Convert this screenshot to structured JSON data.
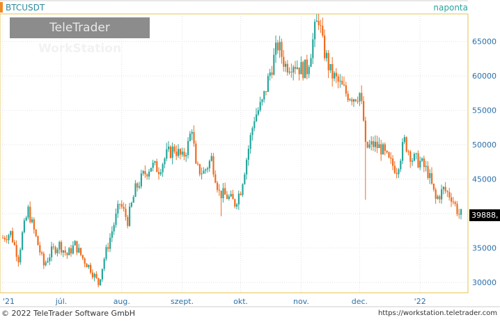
{
  "header": {
    "symbol": "BTCUSDT",
    "period": "naponta",
    "watermark_brand": "TeleTrader",
    "watermark_product": "WorkStation"
  },
  "footer": {
    "copyright": "© 2022  TeleTrader Software GmbH",
    "url": "https://workstation.teletrader.com"
  },
  "colors": {
    "up": "#26a69a",
    "down": "#f06c1e",
    "grid": "#e2e2e2",
    "axis": "#2a6fa8",
    "plot_border": "#e6c34a"
  },
  "chart_data": {
    "type": "candlestick",
    "last_value_label": "39888,",
    "ylim": [
      28500,
      69000
    ],
    "y_ticks": [
      30000,
      35000,
      40000,
      45000,
      50000,
      55000,
      60000,
      65000
    ],
    "y_tick_labels": [
      "30000",
      "35000",
      "40000",
      "45000",
      "50000",
      "55000",
      "60000",
      "65000"
    ],
    "x_ticks": [
      "2021-06-01",
      "2021-07-01",
      "2021-08-01",
      "2021-09-01",
      "2021-10-01",
      "2021-11-01",
      "2021-12-01",
      "2022-01-01"
    ],
    "x_tick_labels": [
      "'21",
      "júl.",
      "aug.",
      "szept.",
      "okt.",
      "nov.",
      "dec.",
      "'22"
    ],
    "x_range": [
      "2021-06-01",
      "2022-01-22"
    ],
    "close_path": [
      [
        "2021-06-01",
        36500
      ],
      [
        "2021-06-05",
        37200
      ],
      [
        "2021-06-09",
        33500
      ],
      [
        "2021-06-11",
        37000
      ],
      [
        "2021-06-14",
        40500
      ],
      [
        "2021-06-16",
        38500
      ],
      [
        "2021-06-19",
        35500
      ],
      [
        "2021-06-22",
        32500
      ],
      [
        "2021-06-26",
        34500
      ],
      [
        "2021-06-30",
        35500
      ],
      [
        "2021-07-04",
        34000
      ],
      [
        "2021-07-08",
        35500
      ],
      [
        "2021-07-12",
        33500
      ],
      [
        "2021-07-16",
        32000
      ],
      [
        "2021-07-20",
        29800
      ],
      [
        "2021-07-23",
        33500
      ],
      [
        "2021-07-27",
        37500
      ],
      [
        "2021-07-31",
        41500
      ],
      [
        "2021-08-04",
        39000
      ],
      [
        "2021-08-08",
        43500
      ],
      [
        "2021-08-12",
        45500
      ],
      [
        "2021-08-16",
        47000
      ],
      [
        "2021-08-20",
        46500
      ],
      [
        "2021-08-24",
        48500
      ],
      [
        "2021-08-28",
        49500
      ],
      [
        "2021-09-01",
        48000
      ],
      [
        "2021-09-04",
        50000
      ],
      [
        "2021-09-06",
        52700
      ],
      [
        "2021-09-08",
        46500
      ],
      [
        "2021-09-12",
        46000
      ],
      [
        "2021-09-16",
        48000
      ],
      [
        "2021-09-20",
        43000
      ],
      [
        "2021-09-24",
        42500
      ],
      [
        "2021-09-28",
        41500
      ],
      [
        "2021-10-01",
        43500
      ],
      [
        "2021-10-04",
        48000
      ],
      [
        "2021-10-08",
        54000
      ],
      [
        "2021-10-12",
        56000
      ],
      [
        "2021-10-16",
        60500
      ],
      [
        "2021-10-20",
        64500
      ],
      [
        "2021-10-24",
        61500
      ],
      [
        "2021-10-28",
        62000
      ],
      [
        "2021-11-01",
        61000
      ],
      [
        "2021-11-04",
        61000
      ],
      [
        "2021-11-08",
        66500
      ],
      [
        "2021-11-10",
        68500
      ],
      [
        "2021-11-12",
        64500
      ],
      [
        "2021-11-16",
        60500
      ],
      [
        "2021-11-20",
        59000
      ],
      [
        "2021-11-24",
        57500
      ],
      [
        "2021-11-28",
        57000
      ],
      [
        "2021-12-01",
        57500
      ],
      [
        "2021-12-03",
        53500
      ],
      [
        "2021-12-04",
        49500
      ],
      [
        "2021-12-08",
        50000
      ],
      [
        "2021-12-12",
        49500
      ],
      [
        "2021-12-16",
        47500
      ],
      [
        "2021-12-20",
        46500
      ],
      [
        "2021-12-24",
        50500
      ],
      [
        "2021-12-28",
        48000
      ],
      [
        "2022-01-01",
        47500
      ],
      [
        "2022-01-05",
        46000
      ],
      [
        "2022-01-09",
        42000
      ],
      [
        "2022-01-13",
        43500
      ],
      [
        "2022-01-17",
        42500
      ],
      [
        "2022-01-21",
        39888
      ]
    ],
    "wick_spikes": [
      {
        "date": "2021-07-20",
        "low": 29300
      },
      {
        "date": "2021-12-04",
        "low": 42000
      },
      {
        "date": "2021-09-21",
        "low": 39600
      },
      {
        "date": "2021-11-10",
        "high": 69000
      }
    ]
  }
}
